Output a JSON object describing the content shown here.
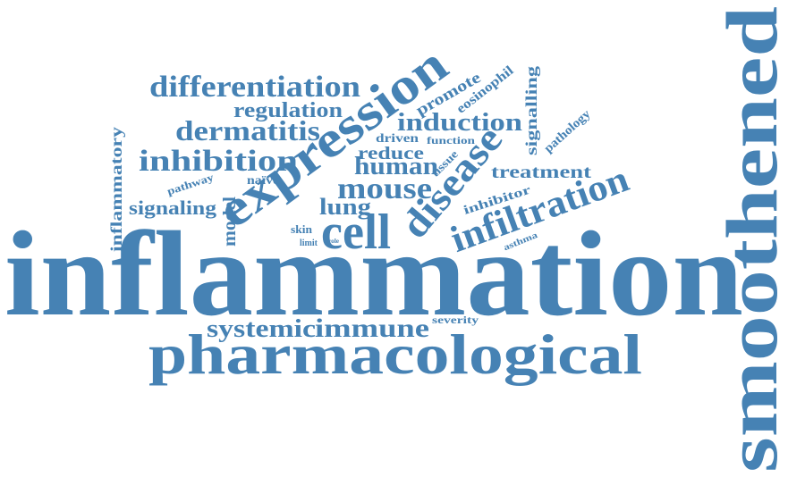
{
  "color": "#4682b4",
  "background": "#ffffff",
  "words": [
    "inflammation",
    "smoothened",
    "pharmacological",
    "expression",
    "cell",
    "disease",
    "infiltration",
    "differentiation",
    "inhibition",
    "dermatitis",
    "mouse",
    "induction",
    "regulation",
    "human",
    "immune",
    "systemic",
    "signaling",
    "lung",
    "treatment",
    "reduce",
    "inflammatory",
    "signalling",
    "promote",
    "model",
    "driven",
    "eosinophil",
    "pathology",
    "inhibitor",
    "tissue",
    "function",
    "pathway",
    "naïve",
    "skin",
    "severity",
    "asthma",
    "limit",
    "role"
  ]
}
